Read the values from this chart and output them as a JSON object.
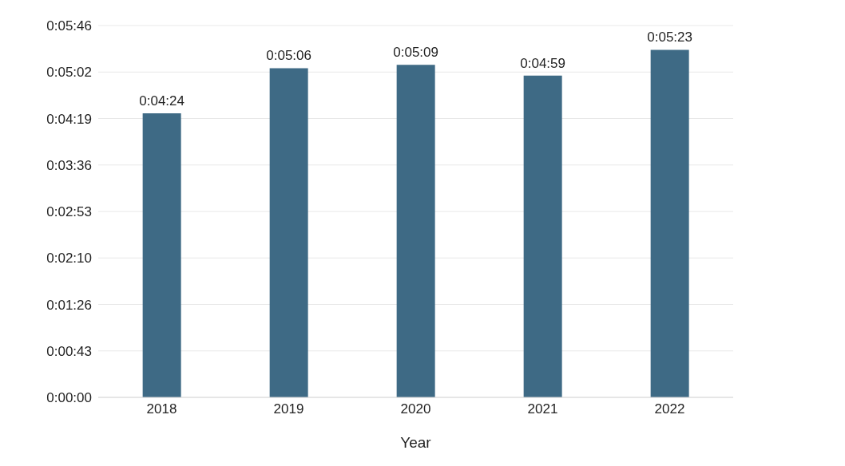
{
  "chart_data": {
    "type": "bar",
    "xlabel": "Year",
    "categories": [
      "2018",
      "2019",
      "2020",
      "2021",
      "2022"
    ],
    "values": [
      264,
      306,
      309,
      299,
      323
    ],
    "value_labels": [
      "0:04:24",
      "0:05:06",
      "0:05:09",
      "0:04:59",
      "0:05:23"
    ],
    "color": "#3e6a85",
    "ylim": [
      0,
      345.6
    ],
    "yticks": [
      {
        "value": 0,
        "label": "0:00:00"
      },
      {
        "value": 43.2,
        "label": "0:00:43"
      },
      {
        "value": 86.4,
        "label": "0:01:26"
      },
      {
        "value": 129.6,
        "label": "0:02:10"
      },
      {
        "value": 172.8,
        "label": "0:02:53"
      },
      {
        "value": 216,
        "label": "0:03:36"
      },
      {
        "value": 259.2,
        "label": "0:04:19"
      },
      {
        "value": 302.4,
        "label": "0:05:02"
      },
      {
        "value": 345.6,
        "label": "0:05:46"
      }
    ],
    "grid": "y"
  }
}
